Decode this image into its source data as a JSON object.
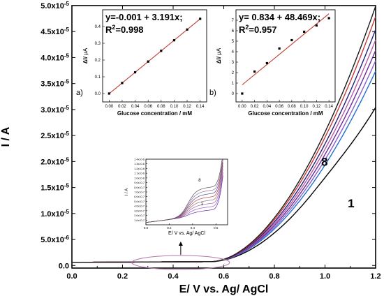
{
  "chart_data": [
    {
      "type": "line",
      "xlabel": "E/ V vs. Ag/ AgCl",
      "ylabel": "I / A",
      "xlim": [
        0.0,
        1.2
      ],
      "ylim": [
        -5e-07,
        5e-05
      ],
      "xticks": [
        "0.0",
        "0.2",
        "0.4",
        "0.6",
        "0.8",
        "1.0",
        "1.2"
      ],
      "yticks": [
        {
          "v": 0.0,
          "mant": "0.0",
          "exp": ""
        },
        {
          "v": 5e-06,
          "mant": "5.0x10",
          "exp": "-6"
        },
        {
          "v": 1e-05,
          "mant": "1.0x10",
          "exp": "-5"
        },
        {
          "v": 1.5e-05,
          "mant": "1.5x10",
          "exp": "-5"
        },
        {
          "v": 2e-05,
          "mant": "2.0x10",
          "exp": "-5"
        },
        {
          "v": 2.5e-05,
          "mant": "2.5x10",
          "exp": "-5"
        },
        {
          "v": 3e-05,
          "mant": "3.0x10",
          "exp": "-5"
        },
        {
          "v": 3.5e-05,
          "mant": "3.5x10",
          "exp": "-5"
        },
        {
          "v": 4e-05,
          "mant": "4.0x10",
          "exp": "-5"
        },
        {
          "v": 4.5e-05,
          "mant": "4.5x10",
          "exp": "-5"
        },
        {
          "v": 5e-05,
          "mant": "5.0x10",
          "exp": "-5"
        }
      ],
      "series_labels": {
        "first": "1",
        "last": "8"
      },
      "series": [
        {
          "color": "#000000",
          "i_end": 3.2e-05
        },
        {
          "color": "#1f6fd1",
          "i_end": 3.65e-05
        },
        {
          "color": "#8a5fc9",
          "i_end": 3.85e-05
        },
        {
          "color": "#6a2b99",
          "i_end": 4.05e-05
        },
        {
          "color": "#b85ca8",
          "i_end": 4.25e-05
        },
        {
          "color": "#22227a",
          "i_end": 4.45e-05
        },
        {
          "color": "#c63a3a",
          "i_end": 4.7e-05
        },
        {
          "color": "#1a1a1a",
          "i_end": 4.9e-05
        }
      ]
    },
    {
      "type": "scatter",
      "panel_letter": "a)",
      "equation": "y=-0.001 + 3.191x;",
      "r2_prefix": "R",
      "r2_exp": "2",
      "r2_value": "=0.998",
      "xlabel": "Glucose concentration / mM",
      "ylabel_prefix": "ΔI/ ",
      "ylabel_unit": "μA",
      "xlim": [
        -0.01,
        0.15
      ],
      "ylim": [
        -0.05,
        0.5
      ],
      "xticks": [
        "0.00",
        "0.02",
        "0.04",
        "0.06",
        "0.08",
        "0.10",
        "0.12",
        "0.14"
      ],
      "yticks": [
        "0.0",
        "0.1",
        "0.2",
        "0.3",
        "0.4"
      ],
      "x": [
        0.0,
        0.02,
        0.04,
        0.06,
        0.08,
        0.1,
        0.12,
        0.14
      ],
      "y": [
        0.0,
        0.063,
        0.127,
        0.191,
        0.255,
        0.318,
        0.382,
        0.446
      ],
      "fit": {
        "intercept": -0.001,
        "slope": 3.191
      }
    },
    {
      "type": "scatter",
      "panel_letter": "b)",
      "equation": "y= 0.834 + 48.469x;",
      "r2_prefix": "R",
      "r2_exp": "2",
      "r2_value": "=0.957",
      "xlabel": "Glucose concentration / mM",
      "ylabel_prefix": "ΔI/ ",
      "ylabel_unit": "μA",
      "xlim": [
        -0.01,
        0.15
      ],
      "ylim": [
        -0.8,
        8.0
      ],
      "xticks": [
        "0.00",
        "0.02",
        "0.04",
        "0.06",
        "0.08",
        "0.10",
        "0.12",
        "0.14"
      ],
      "yticks": [
        "0",
        "1",
        "2",
        "3",
        "4",
        "5",
        "6",
        "7"
      ],
      "x": [
        0.0,
        0.02,
        0.04,
        0.06,
        0.08,
        0.1,
        0.12,
        0.14
      ],
      "y": [
        0.0,
        2.1,
        2.9,
        4.3,
        5.1,
        5.9,
        6.5,
        7.2
      ],
      "fit": {
        "intercept": 0.834,
        "slope": 48.469
      }
    },
    {
      "type": "line",
      "xlabel": "E/ V vs. Ag/ AgCl",
      "ylabel": "I / A",
      "xlim": [
        0.0,
        0.7
      ],
      "ylim": [
        0,
        1.4e-06
      ],
      "xticks": [
        "0.0",
        "0.2",
        "0.4",
        "0.6"
      ],
      "yticks": [
        {
          "v": 1e-07,
          "lab": "1.0x10-7"
        },
        {
          "v": 2e-07,
          "lab": "2.0x10-7"
        },
        {
          "v": 3e-07,
          "lab": "3.0x10-7"
        },
        {
          "v": 4e-07,
          "lab": "4.0x10-7"
        },
        {
          "v": 5e-07,
          "lab": "5.0x10-7"
        },
        {
          "v": 6e-07,
          "lab": "6.0x10-7"
        },
        {
          "v": 7e-07,
          "lab": "7.0x10-7"
        },
        {
          "v": 8e-07,
          "lab": "8.0x10-7"
        },
        {
          "v": 9e-07,
          "lab": "9.0x10-7"
        },
        {
          "v": 1e-06,
          "lab": "1.0x10-6"
        },
        {
          "v": 1.1e-06,
          "lab": "1.1x10-6"
        },
        {
          "v": 1.2e-06,
          "lab": "1.2x10-6"
        },
        {
          "v": 1.3e-06,
          "lab": "1.3x10-6"
        },
        {
          "v": 1.4e-06,
          "lab": "1.4x10-6"
        }
      ],
      "series_labels": {
        "first": "1",
        "last": "8"
      },
      "peak_heights": [
        1e-07,
        1.7e-07,
        2.4e-07,
        3.1e-07,
        3.8e-07,
        4.5e-07,
        5.2e-07,
        5.9e-07
      ]
    }
  ]
}
